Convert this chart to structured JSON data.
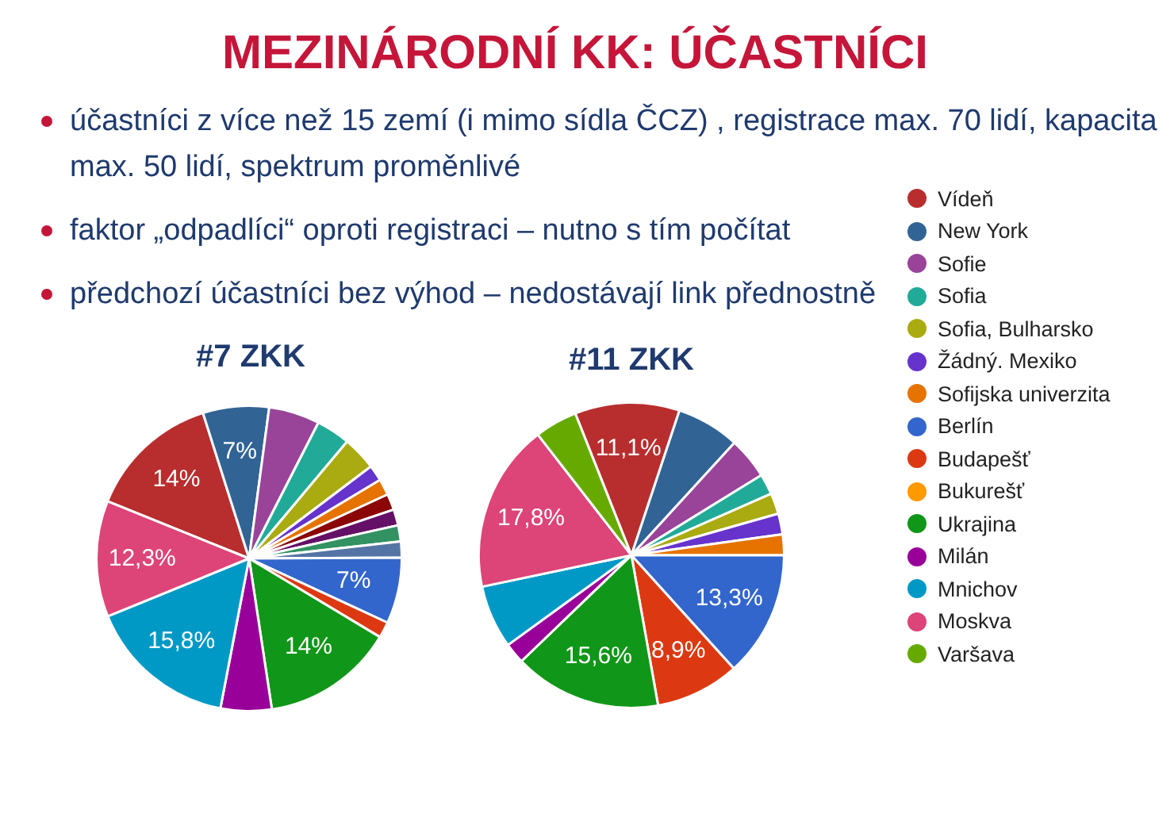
{
  "chart_data": [
    {
      "type": "other",
      "title": "MEZINÁRODNÍ KK: ÚČASTNÍCI",
      "annotations": [
        "účastníci z více než 15 zemí (i mimo sídla ČCZ) , registrace max. 70 lidí, kapacita max. 50 lidí, spektrum proměnlivé",
        "faktor „odpadlíci“ oproti registraci – nutno s tím počítat",
        "předchozí účastníci bez výhod – nedostávají link přednostně"
      ]
    },
    {
      "type": "pie",
      "title": "#7 ZKK",
      "categories": [
        null,
        null,
        null,
        null,
        null,
        null,
        null,
        null,
        null,
        null,
        null,
        null,
        null,
        null,
        null,
        null,
        null
      ],
      "values": [
        14,
        7,
        5.4,
        3.6,
        3.6,
        1.7,
        1.7,
        1.7,
        1.7,
        1.7,
        1.7,
        7,
        1.7,
        14,
        5.4,
        15.8,
        12.3
      ],
      "colors": [
        "#b82e2e",
        "#316395",
        "#994499",
        "#22aa99",
        "#aaaa11",
        "#6633cc",
        "#e67300",
        "#8b0707",
        "#651067",
        "#329262",
        "#5574a6",
        "#3366cc",
        "#dc3912",
        "#109618",
        "#990099",
        "#0099c6",
        "#dd4477"
      ],
      "value_labels": [
        "14%",
        "7%",
        null,
        null,
        null,
        null,
        null,
        null,
        null,
        null,
        null,
        "7%",
        null,
        "14%",
        null,
        "15,8%",
        "12,3%"
      ]
    },
    {
      "type": "pie",
      "title": "#11 ZKK",
      "categories": [
        "Vídeň",
        "New York",
        "Sofie",
        "Sofia",
        "Sofia, Bulharsko",
        "Žádný. Mexiko",
        "Sofijska univerzita",
        "Berlín",
        "Budapešť",
        "Bukurešť",
        "Ukrajina",
        "Milán",
        "Mnichov",
        "Moskva",
        "Varšava"
      ],
      "values": [
        11.1,
        6.7,
        4.4,
        2.2,
        2.2,
        2.2,
        2.2,
        13.3,
        8.9,
        0,
        15.6,
        2.2,
        6.7,
        17.8,
        4.5
      ],
      "colors": [
        "#b82e2e",
        "#316395",
        "#994499",
        "#22aa99",
        "#aaaa11",
        "#6633cc",
        "#e67300",
        "#3366cc",
        "#dc3912",
        "#ff9900",
        "#109618",
        "#990099",
        "#0099c6",
        "#dd4477",
        "#66aa00"
      ],
      "value_labels": [
        "11,1%",
        null,
        null,
        null,
        null,
        null,
        null,
        "13,3%",
        "8,9%",
        null,
        "15,6%",
        null,
        null,
        "17,8%",
        null
      ],
      "legend": "right"
    }
  ]
}
